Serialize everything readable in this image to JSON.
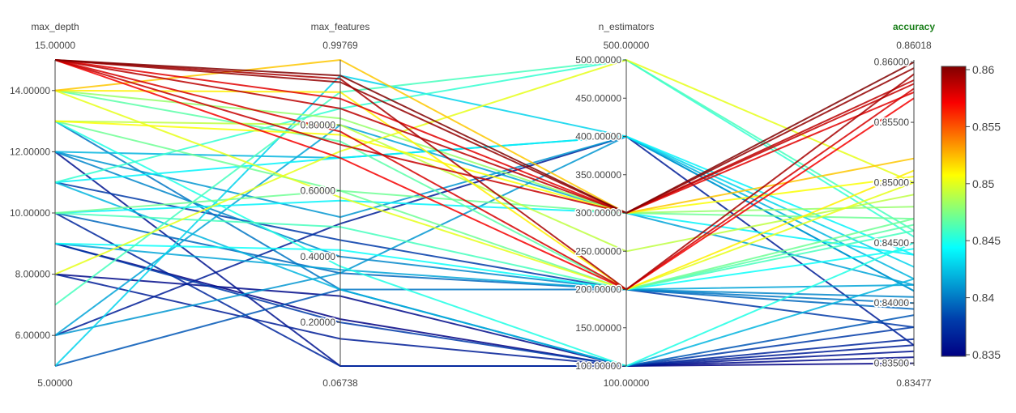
{
  "chart_data": {
    "type": "parallel_coordinates",
    "colorscale": "Jet",
    "color_dimension": "accuracy",
    "dimensions": [
      {
        "name": "max_depth",
        "range": [
          5,
          15
        ],
        "range_labels": {
          "max": "15.00000",
          "min": "5.00000"
        },
        "ticks": [
          {
            "v": 6,
            "label": "6.00000"
          },
          {
            "v": 8,
            "label": "8.00000"
          },
          {
            "v": 10,
            "label": "10.00000"
          },
          {
            "v": 12,
            "label": "12.00000"
          },
          {
            "v": 14,
            "label": "14.00000"
          }
        ]
      },
      {
        "name": "max_features",
        "range": [
          0.06738,
          0.99769
        ],
        "range_labels": {
          "max": "0.99769",
          "min": "0.06738"
        },
        "ticks": [
          {
            "v": 0.2,
            "label": "0.20000"
          },
          {
            "v": 0.4,
            "label": "0.40000"
          },
          {
            "v": 0.6,
            "label": "0.60000"
          },
          {
            "v": 0.8,
            "label": "0.80000"
          }
        ]
      },
      {
        "name": "n_estimators",
        "range": [
          100,
          500
        ],
        "range_labels": {
          "max": "500.00000",
          "min": "100.00000"
        },
        "ticks": [
          {
            "v": 100,
            "label": "100.00000"
          },
          {
            "v": 150,
            "label": "150.00000"
          },
          {
            "v": 200,
            "label": "200.00000"
          },
          {
            "v": 250,
            "label": "250.00000"
          },
          {
            "v": 300,
            "label": "300.00000"
          },
          {
            "v": 350,
            "label": "350.00000"
          },
          {
            "v": 400,
            "label": "400.00000"
          },
          {
            "v": 450,
            "label": "450.00000"
          },
          {
            "v": 500,
            "label": "500.00000"
          }
        ]
      },
      {
        "name": "accuracy",
        "range": [
          0.83477,
          0.86018
        ],
        "range_labels": {
          "max": "0.86018",
          "min": "0.83477"
        },
        "ticks": [
          {
            "v": 0.835,
            "label": "0.83500"
          },
          {
            "v": 0.84,
            "label": "0.84000"
          },
          {
            "v": 0.845,
            "label": "0.84500"
          },
          {
            "v": 0.85,
            "label": "0.85000"
          },
          {
            "v": 0.855,
            "label": "0.85500"
          },
          {
            "v": 0.86,
            "label": "0.86000"
          }
        ]
      }
    ],
    "colorbar": {
      "range": [
        0.835,
        0.86
      ],
      "ticks": [
        "0.835",
        "0.84",
        "0.845",
        "0.85",
        "0.855",
        "0.86"
      ]
    },
    "records": [
      [
        15,
        0.95,
        300,
        0.86
      ],
      [
        15,
        0.93,
        300,
        0.8595
      ],
      [
        15,
        0.94,
        200,
        0.859
      ],
      [
        15,
        0.85,
        300,
        0.8585
      ],
      [
        15,
        0.74,
        300,
        0.8582
      ],
      [
        15,
        0.78,
        200,
        0.8578
      ],
      [
        15,
        0.88,
        300,
        0.8575
      ],
      [
        15,
        0.7,
        200,
        0.857
      ],
      [
        14,
        0.99769,
        300,
        0.852
      ],
      [
        14,
        0.9,
        200,
        0.851
      ],
      [
        14,
        0.82,
        300,
        0.848
      ],
      [
        14,
        0.58,
        200,
        0.85
      ],
      [
        14,
        0.75,
        200,
        0.8465
      ],
      [
        13,
        0.8,
        250,
        0.849
      ],
      [
        13,
        0.77,
        300,
        0.8505
      ],
      [
        13,
        0.6,
        200,
        0.847
      ],
      [
        13,
        0.37,
        100,
        0.845
      ],
      [
        13,
        0.3,
        200,
        0.84
      ],
      [
        12,
        0.7,
        400,
        0.842
      ],
      [
        12,
        0.52,
        400,
        0.841
      ],
      [
        12,
        0.4,
        200,
        0.8405
      ],
      [
        12,
        0.06738,
        100,
        0.836
      ],
      [
        11,
        0.7,
        400,
        0.844
      ],
      [
        11,
        0.85,
        500,
        0.8455
      ],
      [
        11,
        0.3,
        100,
        0.842
      ],
      [
        11,
        0.45,
        200,
        0.838
      ],
      [
        10,
        0.6,
        300,
        0.847
      ],
      [
        10,
        0.57,
        300,
        0.844
      ],
      [
        10,
        0.49,
        200,
        0.846
      ],
      [
        10,
        0.35,
        200,
        0.8395
      ],
      [
        10,
        0.06738,
        100,
        0.837
      ],
      [
        9,
        0.42,
        200,
        0.8445
      ],
      [
        9,
        0.36,
        200,
        0.8415
      ],
      [
        9,
        0.2,
        100,
        0.838
      ],
      [
        9,
        0.21,
        100,
        0.835
      ],
      [
        8,
        0.28,
        100,
        0.8355
      ],
      [
        8,
        0.15,
        100,
        0.8365
      ],
      [
        8,
        0.72,
        500,
        0.85
      ],
      [
        7,
        0.9,
        500,
        0.846
      ],
      [
        6,
        0.35,
        400,
        0.841
      ],
      [
        6,
        0.5,
        400,
        0.8365
      ],
      [
        6,
        0.8,
        300,
        0.8415
      ],
      [
        5,
        0.95,
        400,
        0.843
      ],
      [
        5,
        0.3,
        100,
        0.839
      ]
    ]
  }
}
